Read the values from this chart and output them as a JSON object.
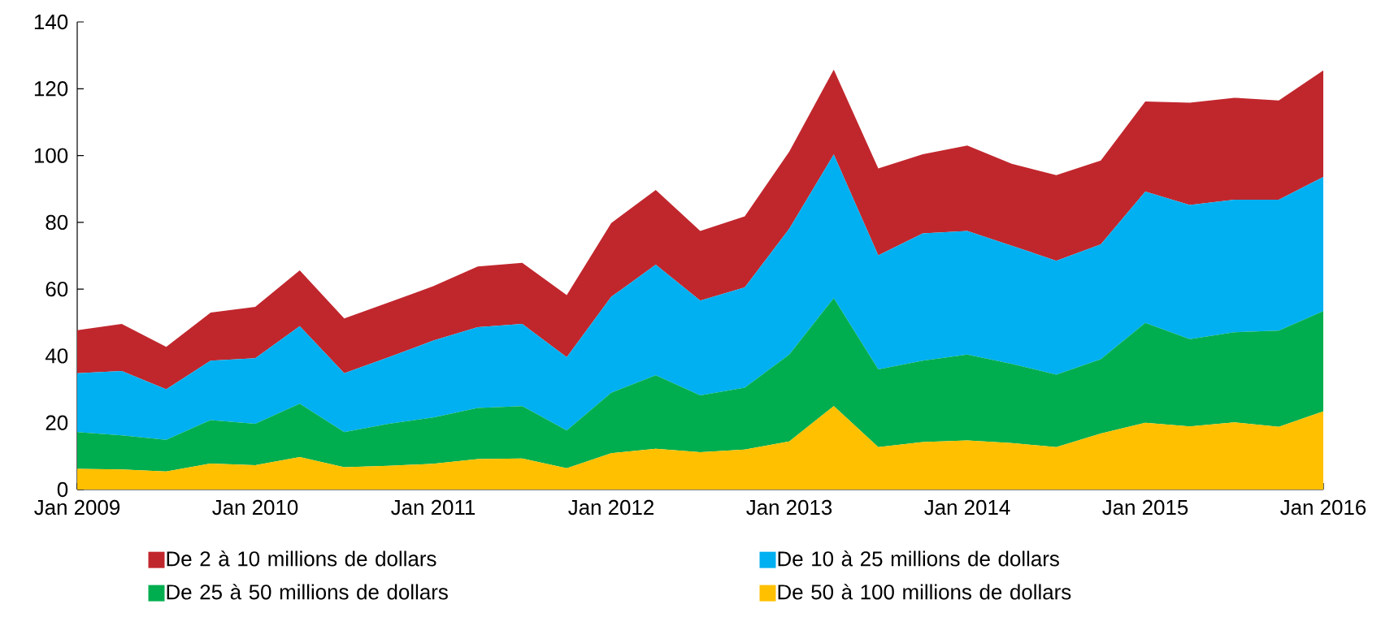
{
  "chart_data": {
    "type": "area",
    "stacked": true,
    "legend": "bottom",
    "grid": false,
    "x": [
      "2009-01",
      "2009-04",
      "2009-07",
      "2009-10",
      "2010-01",
      "2010-04",
      "2010-07",
      "2010-10",
      "2011-01",
      "2011-04",
      "2011-07",
      "2011-10",
      "2012-01",
      "2012-04",
      "2012-07",
      "2012-10",
      "2013-01",
      "2013-04",
      "2013-07",
      "2013-10",
      "2014-01",
      "2014-04",
      "2014-07",
      "2014-10",
      "2015-01",
      "2015-04",
      "2015-07",
      "2015-10",
      "2016-01"
    ],
    "xlim": [
      "2009-01",
      "2016-01"
    ],
    "xticks": [
      {
        "value": "2009-01",
        "label": "Jan 2009"
      },
      {
        "value": "2010-01",
        "label": "Jan 2010"
      },
      {
        "value": "2011-01",
        "label": "Jan 2011"
      },
      {
        "value": "2012-01",
        "label": "Jan 2012"
      },
      {
        "value": "2013-01",
        "label": "Jan 2013"
      },
      {
        "value": "2014-01",
        "label": "Jan 2014"
      },
      {
        "value": "2015-01",
        "label": "Jan 2015"
      },
      {
        "value": "2016-01",
        "label": "Jan 2016"
      }
    ],
    "ylim": [
      0,
      140
    ],
    "yticks": [
      0,
      20,
      40,
      60,
      80,
      100,
      120,
      140
    ],
    "series": [
      {
        "name": "De 50 à 100 millions de dollars",
        "color": "#ffc000",
        "values": [
          6.2,
          6.0,
          5.4,
          7.8,
          7.3,
          9.7,
          6.7,
          7.1,
          7.7,
          9.1,
          9.3,
          6.4,
          10.9,
          12.2,
          11.2,
          12.0,
          14.4,
          25.0,
          12.7,
          14.2,
          14.7,
          13.9,
          12.7,
          16.8,
          20.0,
          18.9,
          20.1,
          18.8,
          23.4
        ]
      },
      {
        "name": "De 25 à 50 millions de dollars",
        "color": "#00ae4f",
        "values": [
          11.0,
          10.2,
          9.5,
          13.0,
          12.4,
          16.0,
          10.5,
          12.6,
          13.9,
          15.3,
          15.7,
          11.3,
          18.1,
          22.0,
          17.0,
          18.5,
          26.0,
          32.3,
          23.3,
          24.4,
          25.7,
          23.7,
          21.7,
          22.2,
          29.9,
          26.1,
          27.0,
          28.8,
          30.0
        ]
      },
      {
        "name": "De 10 à 25 millions de dollars",
        "color": "#00b0f0",
        "values": [
          17.6,
          19.3,
          15.1,
          17.8,
          19.6,
          23.2,
          17.6,
          19.9,
          23.0,
          24.2,
          24.6,
          21.9,
          28.7,
          33.1,
          28.4,
          30.0,
          37.7,
          43.0,
          34.1,
          38.1,
          37.0,
          35.4,
          34.1,
          34.4,
          39.3,
          40.2,
          39.7,
          39.2,
          40.2
        ]
      },
      {
        "name": "De 2 à 10 millions de dollars",
        "color": "#c0272d",
        "values": [
          12.9,
          14.1,
          12.7,
          14.4,
          15.4,
          16.7,
          16.4,
          16.4,
          16.3,
          18.2,
          18.3,
          18.6,
          22.1,
          22.4,
          20.8,
          21.3,
          23.1,
          25.4,
          26.0,
          23.7,
          25.6,
          24.5,
          25.6,
          25.1,
          27.0,
          30.6,
          30.5,
          29.7,
          31.9
        ]
      }
    ]
  }
}
